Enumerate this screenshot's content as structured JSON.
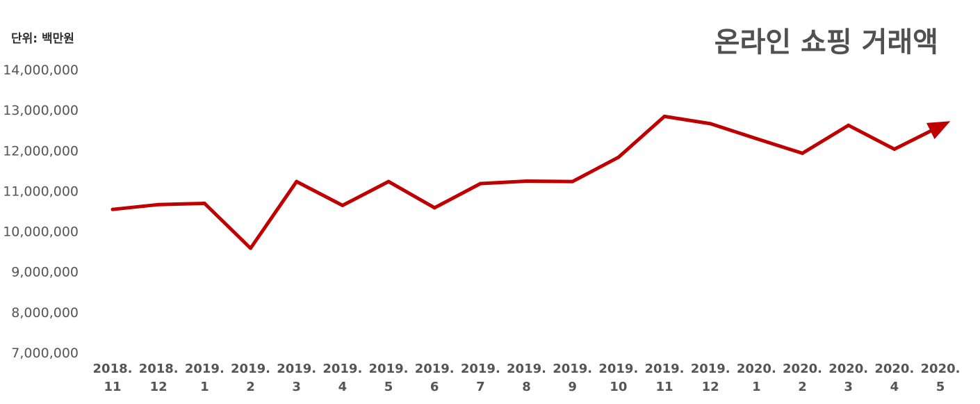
{
  "chart_data": {
    "type": "line",
    "title": "온라인 쇼핑 거래액",
    "unit_label": "단위: 백만원",
    "xlabel": "",
    "ylabel": "",
    "ylim": [
      7000000,
      14000000
    ],
    "yticks": [
      "14,000,000",
      "13,000,000",
      "12,000,000",
      "11,000,000",
      "10,000,000",
      "9,000,000",
      "8,000,000",
      "7,000,000"
    ],
    "ytick_values": [
      14000000,
      13000000,
      12000000,
      11000000,
      10000000,
      9000000,
      8000000,
      7000000
    ],
    "categories": [
      [
        "2018.",
        "11"
      ],
      [
        "2018.",
        "12"
      ],
      [
        "2019.",
        "1"
      ],
      [
        "2019.",
        "2"
      ],
      [
        "2019.",
        "3"
      ],
      [
        "2019.",
        "4"
      ],
      [
        "2019.",
        "5"
      ],
      [
        "2019.",
        "6"
      ],
      [
        "2019.",
        "7"
      ],
      [
        "2019.",
        "8"
      ],
      [
        "2019.",
        "9"
      ],
      [
        "2019.",
        "10"
      ],
      [
        "2019.",
        "11"
      ],
      [
        "2019.",
        "12"
      ],
      [
        "2020.",
        "1"
      ],
      [
        "2020.",
        "2"
      ],
      [
        "2020.",
        "3"
      ],
      [
        "2020.",
        "4"
      ],
      [
        "2020.",
        "5"
      ]
    ],
    "series": [
      {
        "values": [
          10540000,
          10660000,
          10690000,
          9580000,
          11230000,
          10640000,
          11230000,
          10580000,
          11180000,
          11240000,
          11230000,
          11830000,
          12840000,
          12660000,
          12290000,
          11930000,
          12620000,
          12030000,
          12600000
        ],
        "color": "#c00000"
      }
    ],
    "grid": false,
    "legend": "none",
    "end_marker": "arrow"
  }
}
